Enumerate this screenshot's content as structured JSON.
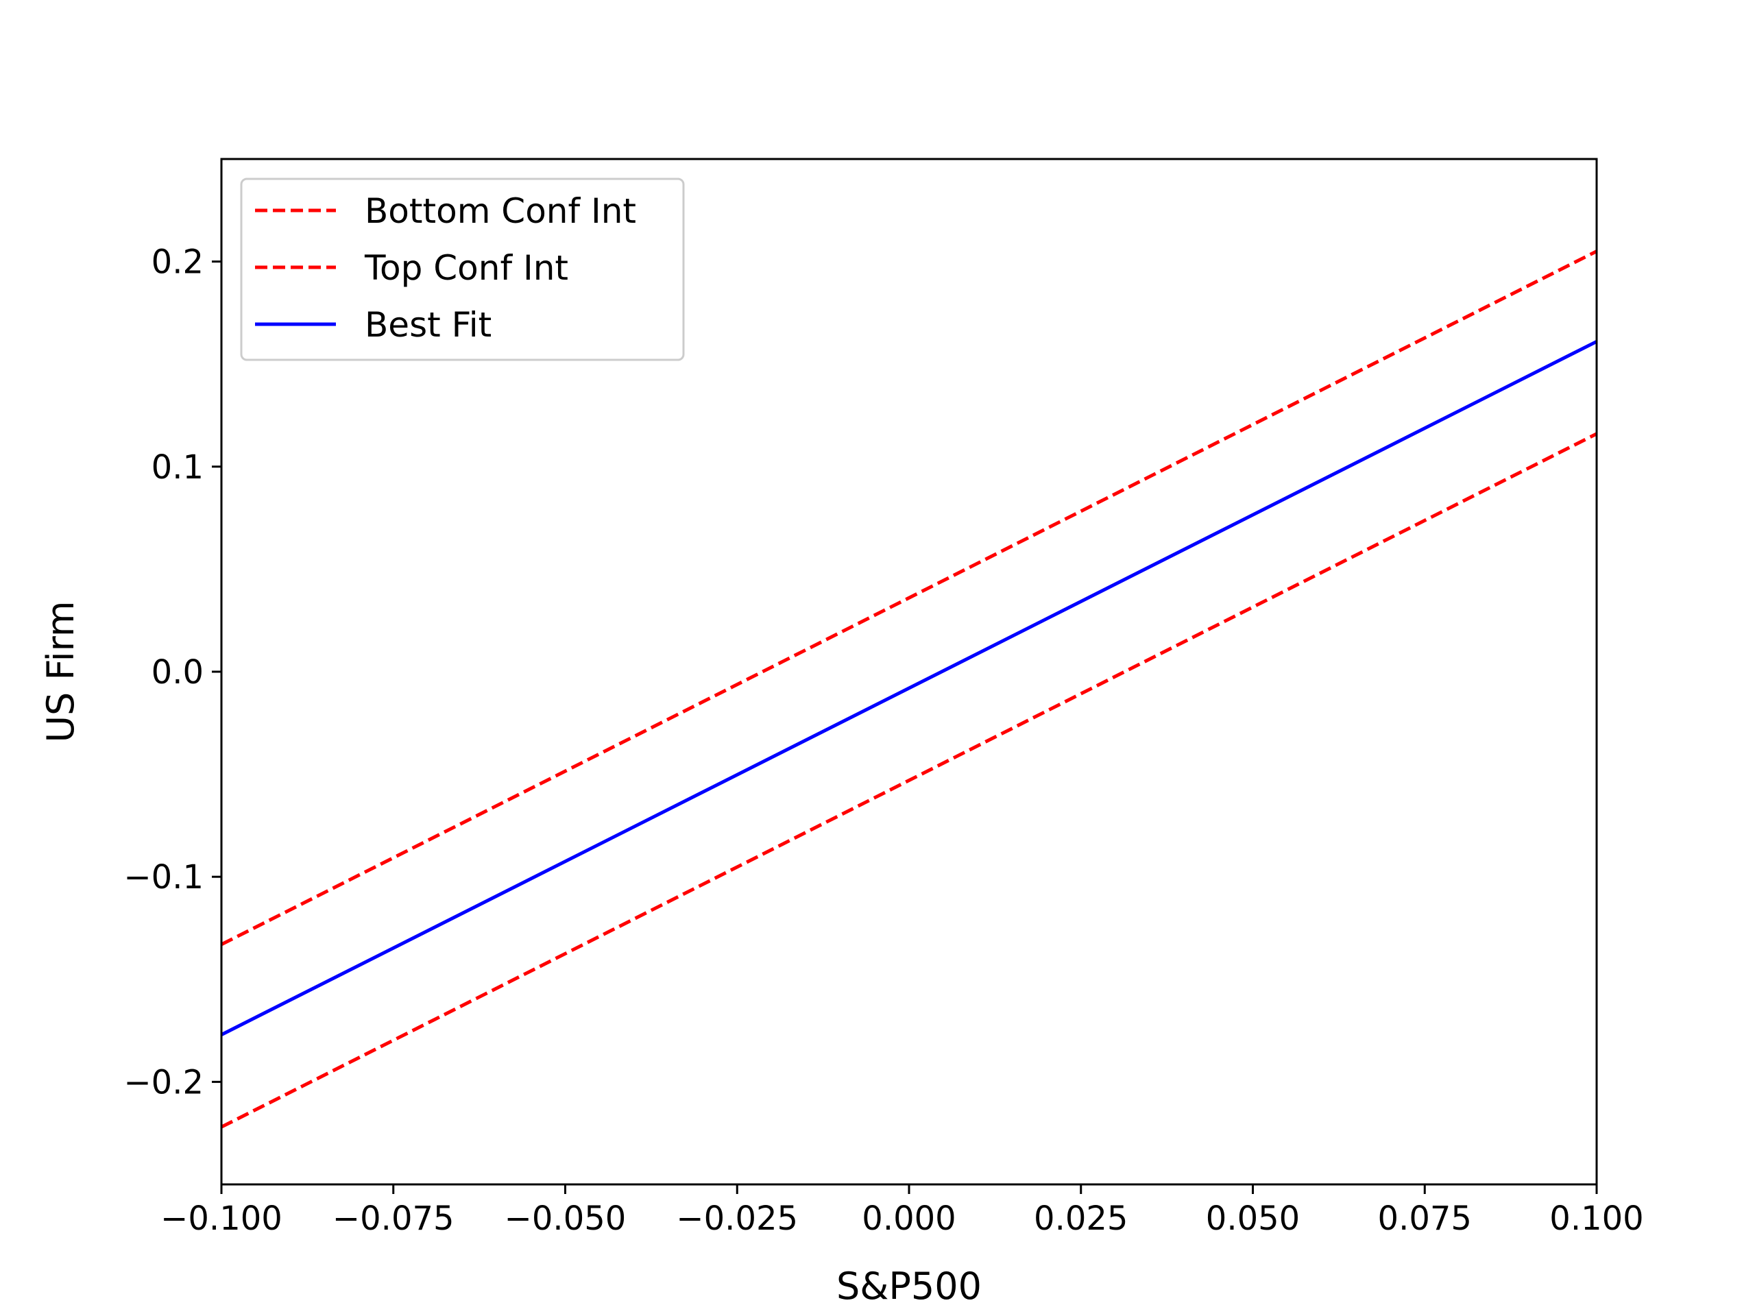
{
  "chart_data": {
    "type": "line",
    "xlabel": "S&P500",
    "ylabel": "US Firm",
    "xlim": [
      -0.1,
      0.1
    ],
    "ylim": [
      -0.25,
      0.25
    ],
    "xticks": [
      -0.1,
      -0.075,
      -0.05,
      -0.025,
      0.0,
      0.025,
      0.05,
      0.075,
      0.1
    ],
    "xtick_labels": [
      "−0.100",
      "−0.075",
      "−0.050",
      "−0.025",
      "0.000",
      "0.025",
      "0.050",
      "0.075",
      "0.100"
    ],
    "yticks": [
      -0.2,
      -0.1,
      0.0,
      0.1,
      0.2
    ],
    "ytick_labels": [
      "−0.2",
      "−0.1",
      "0.0",
      "0.1",
      "0.2"
    ],
    "grid": false,
    "legend_position": "top-left",
    "series": [
      {
        "name": "Bottom Conf Int",
        "color": "#ff0000",
        "style": "dashed",
        "x": [
          -0.1,
          0.1
        ],
        "y": [
          -0.222,
          0.116
        ]
      },
      {
        "name": "Top Conf Int",
        "color": "#ff0000",
        "style": "dashed",
        "x": [
          -0.1,
          0.1
        ],
        "y": [
          -0.133,
          0.205
        ]
      },
      {
        "name": "Best Fit",
        "color": "#0000ff",
        "style": "solid",
        "x": [
          -0.1,
          0.1
        ],
        "y": [
          -0.177,
          0.161
        ]
      }
    ]
  }
}
